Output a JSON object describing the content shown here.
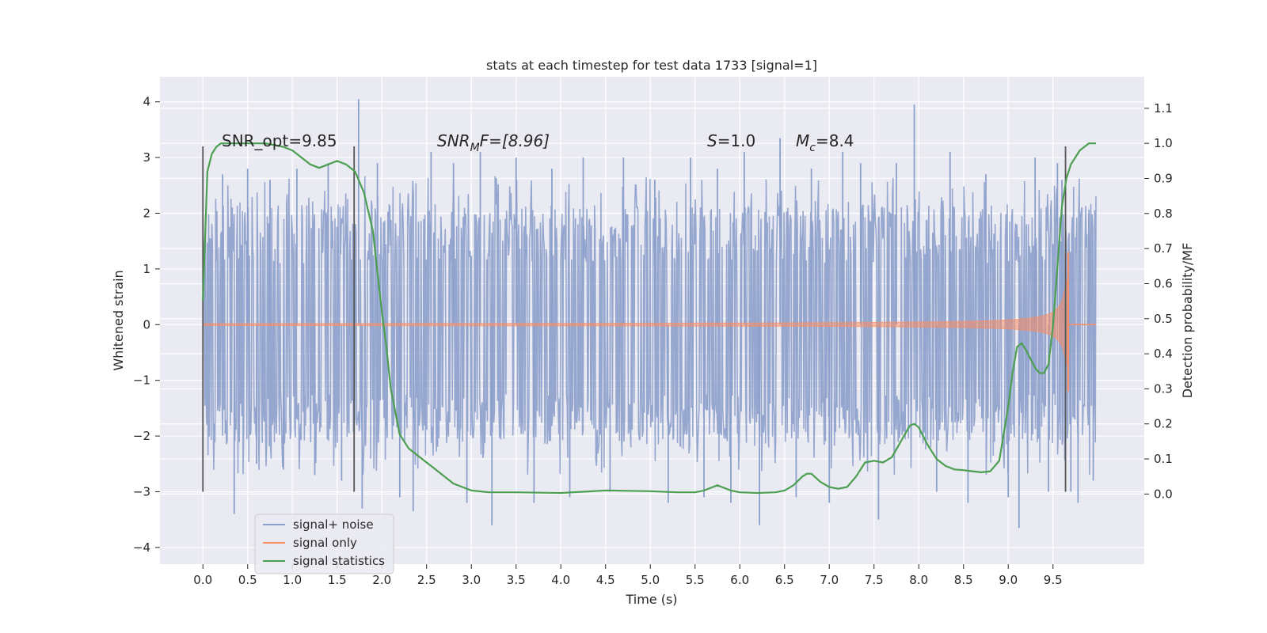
{
  "chart_data": {
    "type": "line",
    "title": "stats at each timestep for test data 1733 [signal=1]",
    "xlabel": "Time (s)",
    "ylabel_left": "Whitened strain",
    "ylabel_right": "Detection probability/MF",
    "xlim": [
      -0.48,
      10.52
    ],
    "ylim_left": [
      -4.3,
      4.45
    ],
    "ylim_right": [
      -0.2,
      1.19
    ],
    "x_ticks": [
      "0.0",
      "0.5",
      "1.0",
      "1.5",
      "2.0",
      "2.5",
      "3.0",
      "3.5",
      "4.0",
      "4.5",
      "5.0",
      "5.5",
      "6.0",
      "6.5",
      "7.0",
      "7.5",
      "8.0",
      "8.5",
      "9.0",
      "9.5"
    ],
    "x_tick_values": [
      0,
      0.5,
      1,
      1.5,
      2,
      2.5,
      3,
      3.5,
      4,
      4.5,
      5,
      5.5,
      6,
      6.5,
      7,
      7.5,
      8,
      8.5,
      9,
      9.5
    ],
    "y_left_ticks": [
      "−4",
      "−3",
      "−2",
      "−1",
      "0",
      "1",
      "2",
      "3",
      "4"
    ],
    "y_left_tick_values": [
      -4,
      -3,
      -2,
      -1,
      0,
      1,
      2,
      3,
      4
    ],
    "y_right_ticks": [
      "0.0",
      "0.1",
      "0.2",
      "0.3",
      "0.4",
      "0.5",
      "0.6",
      "0.7",
      "0.8",
      "0.9",
      "1.0",
      "1.1"
    ],
    "y_right_tick_values": [
      0,
      0.1,
      0.2,
      0.3,
      0.4,
      0.5,
      0.6,
      0.7,
      0.8,
      0.9,
      1.0,
      1.1
    ],
    "grid": true,
    "legend_position": "lower-left",
    "annotations": {
      "snr_opt": "SNR_opt=9.85",
      "snr_mf_pre": "SNR",
      "snr_mf_sub": "M",
      "snr_mf_post": "F=[8.96]",
      "s_var": "S",
      "s_val": "=1.0",
      "mc_var": "M",
      "mc_sub": "c",
      "mc_val": "=8.4"
    },
    "vlines_x": [
      0.0,
      1.69,
      9.64
    ],
    "series": [
      {
        "name": "signal+ noise",
        "color": "#8da0cb",
        "noise_band": [
          -1.8,
          1.35
        ],
        "spikes": [
          [
            0.22,
            2.7
          ],
          [
            0.35,
            -3.4
          ],
          [
            0.5,
            2.8
          ],
          [
            0.6,
            -2.5
          ],
          [
            0.75,
            2.6
          ],
          [
            0.9,
            -2.6
          ],
          [
            1.05,
            2.8
          ],
          [
            1.25,
            -2.7
          ],
          [
            1.4,
            2.9
          ],
          [
            1.55,
            -2.8
          ],
          [
            1.74,
            4.05
          ],
          [
            1.78,
            -3.3
          ],
          [
            1.95,
            2.9
          ],
          [
            2.2,
            -3.1
          ],
          [
            2.35,
            -3.35
          ],
          [
            2.55,
            3.1
          ],
          [
            2.8,
            2.9
          ],
          [
            2.95,
            -3.2
          ],
          [
            3.1,
            3.1
          ],
          [
            3.23,
            -3.6
          ],
          [
            3.5,
            3.0
          ],
          [
            3.7,
            -3.2
          ],
          [
            3.9,
            2.8
          ],
          [
            4.1,
            -3.1
          ],
          [
            4.25,
            3.0
          ],
          [
            4.55,
            -3.0
          ],
          [
            4.7,
            3.0
          ],
          [
            5.05,
            2.6
          ],
          [
            5.2,
            -3.2
          ],
          [
            5.45,
            3.0
          ],
          [
            5.6,
            -3.1
          ],
          [
            5.75,
            2.8
          ],
          [
            5.9,
            -3.2
          ],
          [
            6.05,
            3.1
          ],
          [
            6.22,
            -3.6
          ],
          [
            6.45,
            3.35
          ],
          [
            6.63,
            -3.1
          ],
          [
            6.8,
            2.8
          ],
          [
            7.0,
            -3.2
          ],
          [
            7.15,
            3.1
          ],
          [
            7.35,
            2.9
          ],
          [
            7.55,
            -3.5
          ],
          [
            7.75,
            2.9
          ],
          [
            7.95,
            3.95
          ],
          [
            8.2,
            -3.0
          ],
          [
            8.35,
            3.1
          ],
          [
            8.55,
            -3.2
          ],
          [
            8.75,
            2.7
          ],
          [
            9.0,
            -3.1
          ],
          [
            9.12,
            -3.65
          ],
          [
            9.3,
            3.0
          ],
          [
            9.45,
            -3.0
          ],
          [
            9.55,
            2.9
          ],
          [
            9.6,
            2.6
          ],
          [
            9.7,
            -3.0
          ],
          [
            9.78,
            -3.2
          ],
          [
            9.9,
            2.0
          ],
          [
            9.95,
            -2.8
          ]
        ]
      },
      {
        "name": "signal only",
        "color": "#fc8d62",
        "chirp_end_time": 9.67,
        "peak_amplitude": 1.3
      },
      {
        "name": "signal statistics",
        "color": "#4c9f50",
        "x": [
          0.0,
          0.05,
          0.1,
          0.15,
          0.2,
          0.3,
          0.5,
          0.7,
          0.9,
          1.0,
          1.1,
          1.2,
          1.3,
          1.4,
          1.5,
          1.6,
          1.7,
          1.8,
          1.9,
          2.0,
          2.05,
          2.1,
          2.2,
          2.3,
          2.4,
          2.5,
          2.6,
          2.7,
          2.8,
          2.9,
          3.0,
          3.2,
          3.5,
          4.0,
          4.5,
          5.0,
          5.3,
          5.5,
          5.6,
          5.7,
          5.75,
          5.8,
          5.9,
          6.0,
          6.2,
          6.4,
          6.5,
          6.6,
          6.7,
          6.75,
          6.8,
          6.9,
          7.0,
          7.1,
          7.2,
          7.3,
          7.4,
          7.5,
          7.6,
          7.7,
          7.8,
          7.9,
          7.95,
          8.0,
          8.1,
          8.2,
          8.3,
          8.4,
          8.5,
          8.6,
          8.7,
          8.8,
          8.9,
          9.0,
          9.05,
          9.1,
          9.15,
          9.2,
          9.3,
          9.35,
          9.4,
          9.45,
          9.5,
          9.55,
          9.6,
          9.65,
          9.7,
          9.75,
          9.8,
          9.9,
          9.98
        ],
        "y": [
          0.55,
          0.92,
          0.97,
          0.99,
          1.0,
          1.0,
          1.0,
          1.0,
          0.99,
          0.98,
          0.96,
          0.94,
          0.93,
          0.94,
          0.95,
          0.94,
          0.92,
          0.86,
          0.75,
          0.52,
          0.42,
          0.3,
          0.17,
          0.13,
          0.11,
          0.09,
          0.07,
          0.05,
          0.03,
          0.02,
          0.01,
          0.005,
          0.005,
          0.003,
          0.01,
          0.008,
          0.005,
          0.005,
          0.01,
          0.02,
          0.025,
          0.02,
          0.01,
          0.005,
          0.003,
          0.005,
          0.01,
          0.025,
          0.05,
          0.058,
          0.058,
          0.035,
          0.02,
          0.015,
          0.02,
          0.05,
          0.09,
          0.095,
          0.09,
          0.105,
          0.15,
          0.195,
          0.2,
          0.19,
          0.14,
          0.1,
          0.08,
          0.07,
          0.068,
          0.065,
          0.062,
          0.065,
          0.095,
          0.25,
          0.35,
          0.42,
          0.43,
          0.41,
          0.36,
          0.345,
          0.345,
          0.37,
          0.48,
          0.65,
          0.82,
          0.9,
          0.94,
          0.96,
          0.98,
          1.0,
          1.0
        ]
      }
    ]
  }
}
